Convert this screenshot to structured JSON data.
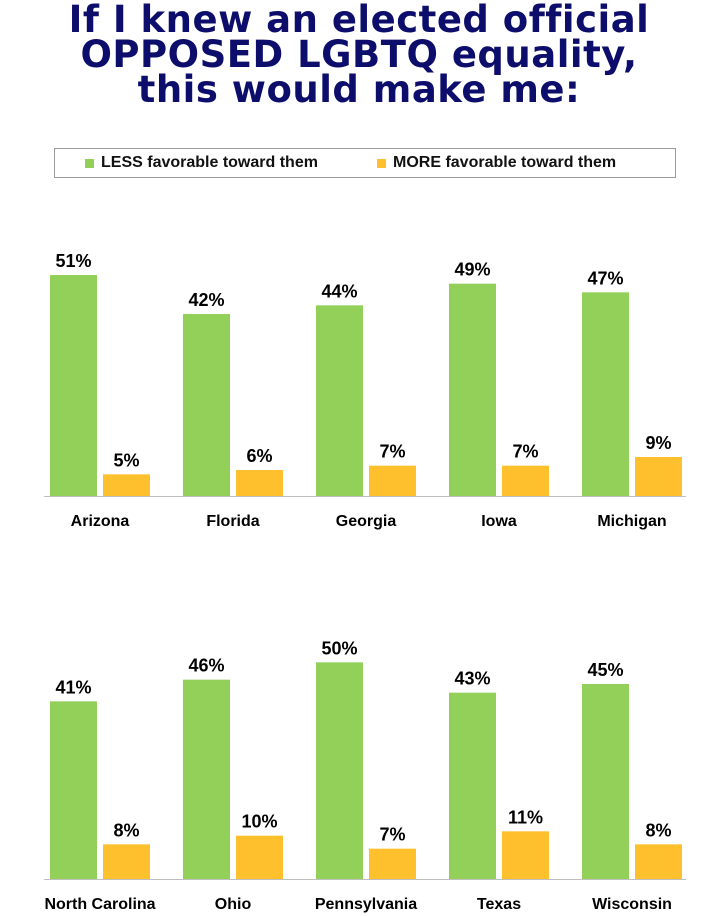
{
  "title_lines": [
    "If I knew an elected official",
    "OPPOSED LGBTQ equality,",
    "this would make me:"
  ],
  "colors": {
    "title": "#0d0d6b",
    "less": "#92d05a",
    "more": "#ffc02e",
    "axis": "#bfbfbf",
    "label": "#000000"
  },
  "legend": {
    "less_label": "LESS favorable toward them",
    "more_label": "MORE favorable toward them"
  },
  "chart_data": [
    {
      "type": "bar",
      "title": "If I knew an elected official OPPOSED LGBTQ equality, this would make me:",
      "categories": [
        "Arizona",
        "Florida",
        "Georgia",
        "Iowa",
        "Michigan"
      ],
      "series": [
        {
          "name": "LESS favorable toward them",
          "values": [
            51,
            42,
            44,
            49,
            47
          ],
          "labels": [
            "51%",
            "42%",
            "44%",
            "49%",
            "47%"
          ]
        },
        {
          "name": "MORE favorable toward them",
          "values": [
            5,
            6,
            7,
            7,
            9
          ],
          "labels": [
            "5%",
            "6%",
            "7%",
            "7%",
            "9%"
          ]
        }
      ],
      "ylim": [
        0,
        51
      ],
      "xlabel": "",
      "ylabel": "",
      "legend": "top"
    },
    {
      "type": "bar",
      "title": "If I knew an elected official OPPOSED LGBTQ equality, this would make me:",
      "categories": [
        "North Carolina",
        "Ohio",
        "Pennsylvania",
        "Texas",
        "Wisconsin"
      ],
      "series": [
        {
          "name": "LESS favorable toward them",
          "values": [
            41,
            46,
            50,
            43,
            45
          ],
          "labels": [
            "41%",
            "46%",
            "50%",
            "43%",
            "45%"
          ]
        },
        {
          "name": "MORE favorable toward them",
          "values": [
            8,
            10,
            7,
            11,
            8
          ],
          "labels": [
            "8%",
            "10%",
            "7%",
            "11%",
            "8%"
          ]
        }
      ],
      "ylim": [
        0,
        51
      ],
      "xlabel": "",
      "ylabel": "",
      "legend": "top"
    }
  ]
}
